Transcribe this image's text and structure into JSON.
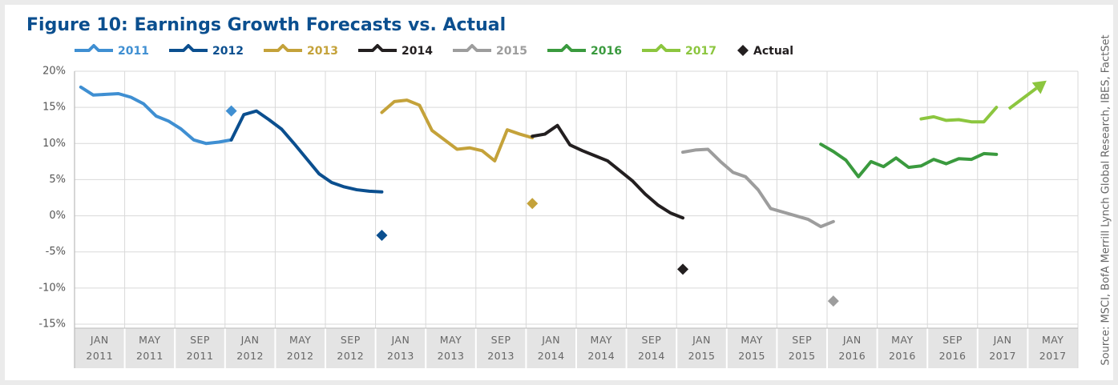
{
  "chart_data": {
    "type": "line",
    "title": "Figure 10: Earnings Growth Forecasts vs. Actual",
    "source": "Source: MSCI, BofA Merrill Lynch Global Research, IBES, FactSet",
    "xlim": [
      "2011-01",
      "2017-09"
    ],
    "xticks": [
      {
        "value": "2011-01",
        "label": "JAN 2011"
      },
      {
        "value": "2011-05",
        "label": "MAY 2011"
      },
      {
        "value": "2011-09",
        "label": "SEP 2011"
      },
      {
        "value": "2012-01",
        "label": "JAN 2012"
      },
      {
        "value": "2012-05",
        "label": "MAY 2012"
      },
      {
        "value": "2012-09",
        "label": "SEP 2012"
      },
      {
        "value": "2013-01",
        "label": "JAN 2013"
      },
      {
        "value": "2013-05",
        "label": "MAY 2013"
      },
      {
        "value": "2013-09",
        "label": "SEP 2013"
      },
      {
        "value": "2014-01",
        "label": "JAN 2014"
      },
      {
        "value": "2014-05",
        "label": "MAY 2014"
      },
      {
        "value": "2014-09",
        "label": "SEP 2014"
      },
      {
        "value": "2015-01",
        "label": "JAN 2015"
      },
      {
        "value": "2015-05",
        "label": "MAY 2015"
      },
      {
        "value": "2015-09",
        "label": "SEP 2015"
      },
      {
        "value": "2016-01",
        "label": "JAN 2016"
      },
      {
        "value": "2016-05",
        "label": "MAY 2016"
      },
      {
        "value": "2016-09",
        "label": "SEP 2016"
      },
      {
        "value": "2017-01",
        "label": "JAN 2017"
      },
      {
        "value": "2017-05",
        "label": "MAY 2017"
      }
    ],
    "ylim": [
      -15,
      20
    ],
    "yticks": [
      {
        "value": 20,
        "label": "20%"
      },
      {
        "value": 15,
        "label": "15%"
      },
      {
        "value": 10,
        "label": "10%"
      },
      {
        "value": 5,
        "label": "5%"
      },
      {
        "value": 0,
        "label": "0%"
      },
      {
        "value": -5,
        "label": "-5%"
      },
      {
        "value": -10,
        "label": "-10%"
      },
      {
        "value": -15,
        "label": "-15%"
      }
    ],
    "grid": true,
    "series": [
      {
        "name": "2011",
        "color": "#3f8fd2",
        "x": [
          "2011-01",
          "2011-02",
          "2011-03",
          "2011-04",
          "2011-05",
          "2011-06",
          "2011-07",
          "2011-08",
          "2011-09",
          "2011-10",
          "2011-11",
          "2011-12",
          "2012-01"
        ],
        "values": [
          17.8,
          16.7,
          16.8,
          16.9,
          16.4,
          15.5,
          13.8,
          13.1,
          12.0,
          10.5,
          10.0,
          10.2,
          10.5
        ]
      },
      {
        "name": "2012",
        "color": "#0b4f8f",
        "x": [
          "2012-01",
          "2012-02",
          "2012-03",
          "2012-04",
          "2012-05",
          "2012-06",
          "2012-07",
          "2012-08",
          "2012-09",
          "2012-10",
          "2012-11",
          "2012-12",
          "2013-01"
        ],
        "values": [
          10.5,
          14.0,
          14.5,
          13.3,
          12.0,
          10.0,
          7.9,
          5.8,
          4.6,
          4.0,
          3.6,
          3.4,
          3.3
        ]
      },
      {
        "name": "2013",
        "color": "#c4a23a",
        "x": [
          "2013-01",
          "2013-02",
          "2013-03",
          "2013-04",
          "2013-05",
          "2013-06",
          "2013-07",
          "2013-08",
          "2013-09",
          "2013-10",
          "2013-11",
          "2013-12",
          "2014-01"
        ],
        "values": [
          14.3,
          15.8,
          16.0,
          15.3,
          11.8,
          10.5,
          9.2,
          9.4,
          9.0,
          7.6,
          11.9,
          11.3,
          10.8
        ]
      },
      {
        "name": "2014",
        "color": "#231f20",
        "x": [
          "2014-01",
          "2014-02",
          "2014-03",
          "2014-04",
          "2014-05",
          "2014-06",
          "2014-07",
          "2014-08",
          "2014-09",
          "2014-10",
          "2014-11",
          "2014-12",
          "2015-01"
        ],
        "values": [
          11.0,
          11.3,
          12.5,
          9.8,
          9.0,
          8.3,
          7.6,
          6.2,
          4.8,
          3.0,
          1.5,
          0.4,
          -0.3
        ]
      },
      {
        "name": "2015",
        "color": "#9d9d9d",
        "x": [
          "2015-01",
          "2015-02",
          "2015-03",
          "2015-04",
          "2015-05",
          "2015-06",
          "2015-07",
          "2015-08",
          "2015-09",
          "2015-10",
          "2015-11",
          "2015-12",
          "2016-01"
        ],
        "values": [
          8.8,
          9.1,
          9.2,
          7.5,
          6.0,
          5.4,
          3.6,
          1.0,
          0.5,
          0.0,
          -0.5,
          -1.5,
          -0.8
        ]
      },
      {
        "name": "2016",
        "color": "#3a9a3e",
        "x": [
          "2015-12",
          "2016-01",
          "2016-02",
          "2016-03",
          "2016-04",
          "2016-05",
          "2016-06",
          "2016-07",
          "2016-08",
          "2016-09",
          "2016-10",
          "2016-11",
          "2016-12",
          "2017-01",
          "2017-02"
        ],
        "values": [
          9.9,
          8.9,
          7.7,
          5.4,
          7.5,
          6.8,
          8.0,
          6.7,
          6.9,
          7.8,
          7.2,
          7.9,
          7.8,
          8.6,
          8.5
        ]
      },
      {
        "name": "2017",
        "color": "#8cc63f",
        "x": [
          "2016-08",
          "2016-09",
          "2016-10",
          "2016-11",
          "2016-12",
          "2017-01",
          "2017-02"
        ],
        "values": [
          13.4,
          13.7,
          13.2,
          13.3,
          13.0,
          13.0,
          15.0
        ],
        "arrow": {
          "x": [
            "2017-03",
            "2017-06"
          ],
          "values": [
            14.8,
            18.7
          ]
        }
      }
    ],
    "actual": {
      "name": "Actual",
      "color": "#231f20",
      "x": [
        "2012-01",
        "2013-01",
        "2014-01",
        "2015-01",
        "2016-01"
      ],
      "values": [
        14.5,
        -2.7,
        1.7,
        -7.4,
        -11.8
      ],
      "colors": [
        "#3f8fd2",
        "#0b4f8f",
        "#c4a23a",
        "#231f20",
        "#9d9d9d"
      ]
    }
  }
}
